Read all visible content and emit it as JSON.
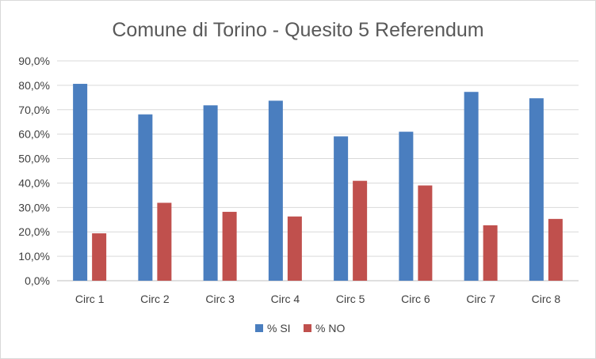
{
  "chart_data": {
    "type": "bar",
    "title": "Comune di Torino - Quesito 5 Referendum",
    "xlabel": "",
    "ylabel": "",
    "categories": [
      "Circ 1",
      "Circ 2",
      "Circ 3",
      "Circ 4",
      "Circ 5",
      "Circ 6",
      "Circ 7",
      "Circ 8"
    ],
    "series": [
      {
        "name": "% SI",
        "color": "#4a7ebf",
        "values": [
          80.6,
          68.1,
          71.8,
          73.7,
          59.1,
          61.0,
          77.3,
          74.7
        ]
      },
      {
        "name": "% NO",
        "color": "#c0504d",
        "values": [
          19.4,
          31.9,
          28.2,
          26.3,
          40.9,
          39.0,
          22.7,
          25.3
        ]
      }
    ],
    "ylim": [
      0,
      90
    ],
    "yticks": [
      0,
      10,
      20,
      30,
      40,
      50,
      60,
      70,
      80,
      90
    ],
    "ytick_labels": [
      "0,0%",
      "10,0%",
      "20,0%",
      "30,0%",
      "40,0%",
      "50,0%",
      "60,0%",
      "70,0%",
      "80,0%",
      "90,0%"
    ],
    "grid": true,
    "legend_position": "bottom"
  }
}
